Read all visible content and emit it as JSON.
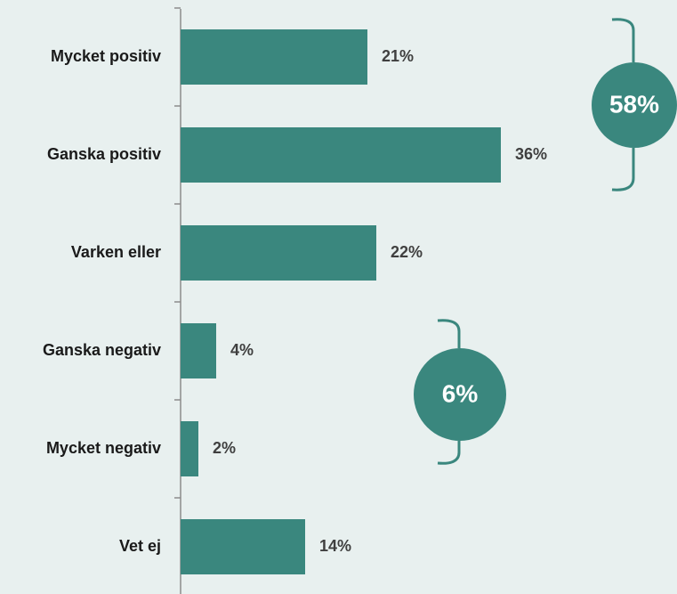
{
  "chart_data": {
    "type": "bar",
    "orientation": "horizontal",
    "categories": [
      "Mycket positiv",
      "Ganska positiv",
      "Varken eller",
      "Ganska negativ",
      "Mycket negativ",
      "Vet ej"
    ],
    "values": [
      21,
      36,
      22,
      4,
      2,
      14
    ],
    "value_labels": [
      "21%",
      "36%",
      "22%",
      "4%",
      "2%",
      "14%"
    ],
    "color": "#3a877e",
    "xlim": [
      0,
      55
    ],
    "annotations": [
      "58%",
      "6%"
    ]
  }
}
